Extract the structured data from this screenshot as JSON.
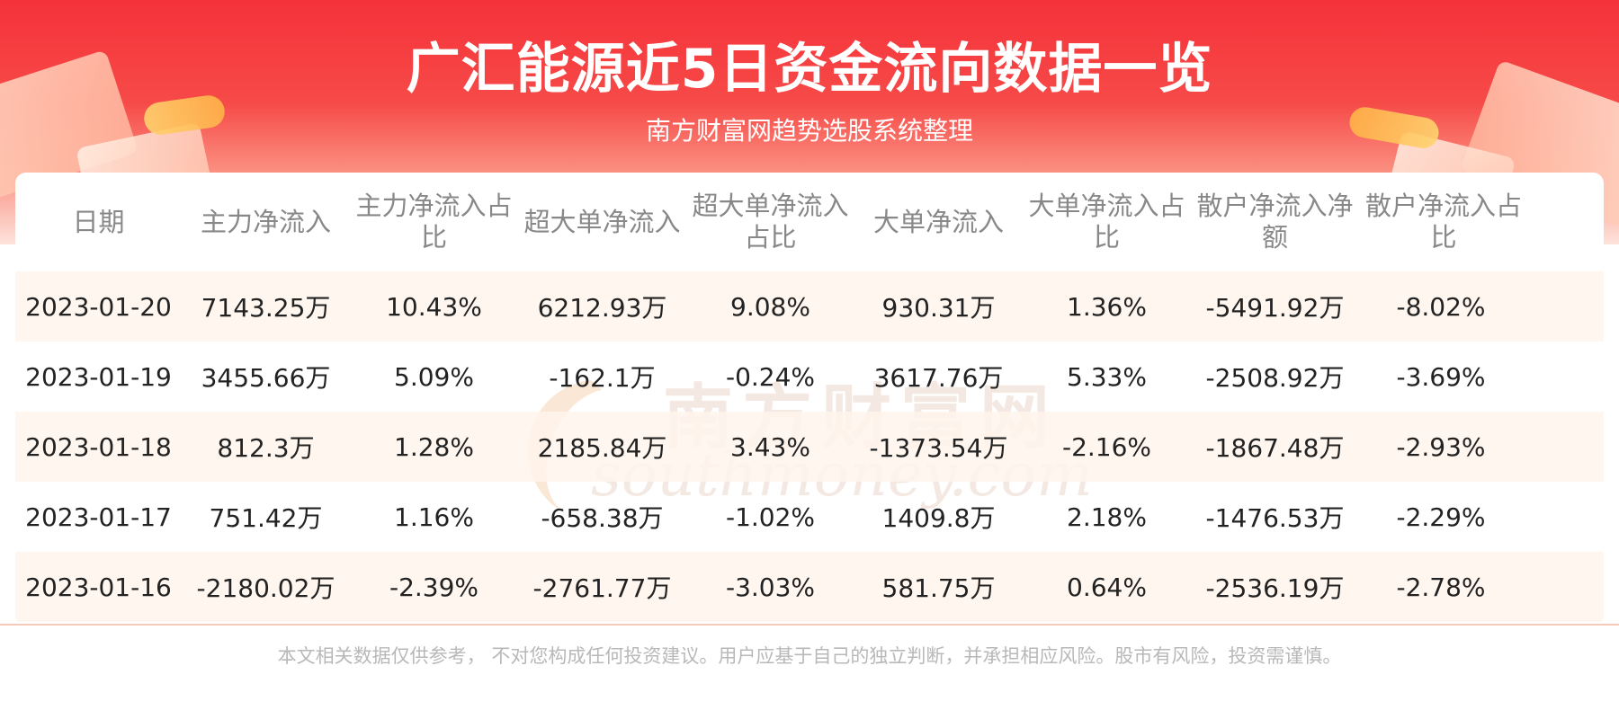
{
  "header": {
    "title": "广汇能源近5日资金流向数据一览",
    "subtitle": "南方财富网趋势选股系统整理"
  },
  "watermark": {
    "cn": "南方财富网",
    "en": "southmoney.com"
  },
  "colors": {
    "banner_top": "#f5323a",
    "banner_bottom": "#fde3dc",
    "row_stripe": "#fff4ec",
    "header_text": "#888888",
    "cell_text": "#222222",
    "footer_text": "#b8b8b8"
  },
  "chart_data": {
    "type": "table",
    "title": "广汇能源近5日资金流向数据一览",
    "columns": [
      "日期",
      "主力净流入",
      "主力净流入占比",
      "超大单净流入",
      "超大单净流入占比",
      "大单净流入",
      "大单净流入占比",
      "散户净流入净额",
      "散户净流入占比"
    ],
    "rows": [
      [
        "2023-01-20",
        "7143.25万",
        "10.43%",
        "6212.93万",
        "9.08%",
        "930.31万",
        "1.36%",
        "-5491.92万",
        "-8.02%"
      ],
      [
        "2023-01-19",
        "3455.66万",
        "5.09%",
        "-162.1万",
        "-0.24%",
        "3617.76万",
        "5.33%",
        "-2508.92万",
        "-3.69%"
      ],
      [
        "2023-01-18",
        "812.3万",
        "1.28%",
        "2185.84万",
        "3.43%",
        "-1373.54万",
        "-2.16%",
        "-1867.48万",
        "-2.93%"
      ],
      [
        "2023-01-17",
        "751.42万",
        "1.16%",
        "-658.38万",
        "-1.02%",
        "1409.8万",
        "2.18%",
        "-1476.53万",
        "-2.29%"
      ],
      [
        "2023-01-16",
        "-2180.02万",
        "-2.39%",
        "-2761.77万",
        "-3.03%",
        "581.75万",
        "0.64%",
        "-2536.19万",
        "-2.78%"
      ]
    ]
  },
  "footer": {
    "disclaimer": "本文相关数据仅供参考， 不对您构成任何投资建议。用户应基于自己的独立判断，并承担相应风险。股市有风险，投资需谨慎。"
  }
}
